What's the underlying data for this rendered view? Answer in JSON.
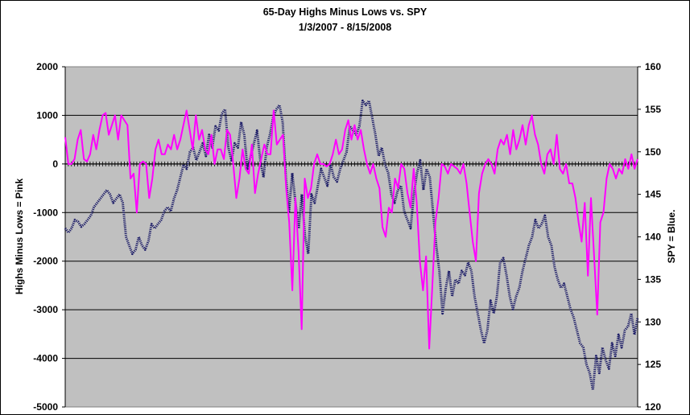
{
  "chart_data": {
    "type": "line",
    "title": "65-Day Highs Minus Lows vs. SPY",
    "subtitle": "1/3/2007 - 8/15/2008",
    "ylabel_left": "Highs Minus Lows = Pink",
    "ylabel_right": "SPY = Blue.",
    "x_range": [
      "1/3/2007",
      "8/15/2008"
    ],
    "y_left": {
      "min": -5000,
      "max": 2000,
      "ticks": [
        "2000",
        "1000",
        "0",
        "-1000",
        "-2000",
        "-3000",
        "-4000",
        "-5000"
      ]
    },
    "y_right": {
      "min": 120,
      "max": 160,
      "ticks": [
        "160",
        "155",
        "150",
        "145",
        "140",
        "135",
        "130",
        "125",
        "120"
      ]
    },
    "grid": true,
    "plot_background": "#c0c0c0",
    "series": [
      {
        "axis": "left",
        "color": "#ff00ff",
        "values": [
          550,
          0,
          0,
          100,
          500,
          700,
          100,
          50,
          200,
          600,
          300,
          700,
          1000,
          1050,
          600,
          800,
          1000,
          500,
          1000,
          900,
          800,
          -300,
          -200,
          -1000,
          0,
          50,
          0,
          -700,
          -300,
          300,
          500,
          200,
          200,
          400,
          300,
          600,
          300,
          500,
          800,
          1100,
          700,
          300,
          1000,
          500,
          700,
          300,
          200,
          600,
          0,
          300,
          300,
          100,
          700,
          600,
          0,
          -700,
          -300,
          300,
          -100,
          -200,
          400,
          -600,
          -200,
          100,
          400,
          200,
          200,
          1100,
          400,
          500,
          600,
          -500,
          -1200,
          -2600,
          -700,
          -1800,
          -3400,
          -300,
          -700,
          -500,
          0,
          200,
          0,
          0,
          -50,
          0,
          200,
          500,
          200,
          300,
          700,
          900,
          500,
          800,
          500,
          700,
          300,
          0,
          -200,
          0,
          -300,
          -500,
          -1300,
          -1500,
          -900,
          -1000,
          -300,
          -500,
          0,
          -100,
          -600,
          -900,
          -100,
          -800,
          -2000,
          -2600,
          -1900,
          -3800,
          -2500,
          -1200,
          -700,
          0,
          -50,
          -200,
          0,
          -50,
          -100,
          -200,
          0,
          -400,
          -1000,
          -1600,
          -2000,
          -600,
          -200,
          0,
          100,
          0,
          -200,
          300,
          500,
          400,
          600,
          200,
          700,
          300,
          500,
          800,
          400,
          800,
          1000,
          600,
          400,
          0,
          -200,
          200,
          300,
          0,
          600,
          -100,
          -200,
          0,
          -400,
          -400,
          -700,
          -1200,
          -1600,
          -800,
          -2300,
          -700,
          -1900,
          -3100,
          -1200,
          -1000,
          -300,
          0,
          -100,
          -300,
          -100,
          -200,
          100,
          -100,
          200,
          -100,
          100
        ]
      },
      {
        "axis": "right",
        "color": "#1a1a66",
        "values": [
          141,
          140.5,
          141,
          142,
          141.8,
          141.2,
          141.5,
          142,
          142.5,
          143.5,
          144,
          144.5,
          145,
          145.5,
          145,
          144,
          144.5,
          145,
          144,
          140,
          139,
          138,
          138.5,
          140,
          139,
          138.5,
          139.5,
          141.5,
          141,
          141.5,
          142,
          143,
          143.5,
          143,
          144.5,
          145.5,
          147,
          148.5,
          148,
          150,
          150.5,
          149,
          150,
          151,
          149.5,
          152,
          150.5,
          153,
          152.5,
          154.5,
          155,
          150.5,
          149,
          151,
          150.5,
          153.5,
          152,
          148,
          149.5,
          151,
          152.5,
          149,
          147,
          150.5,
          152,
          154,
          155,
          155.5,
          153.5,
          147,
          143,
          147.5,
          144,
          141,
          145,
          140,
          138,
          145,
          144,
          146,
          148,
          147,
          146,
          148.5,
          147,
          146.5,
          148,
          149,
          150,
          153,
          152.5,
          152,
          153,
          156,
          155.5,
          156,
          154,
          152,
          149.5,
          150.5,
          148.5,
          147.5,
          145,
          144,
          145.5,
          146,
          143,
          142,
          141,
          145,
          147.5,
          149,
          145.5,
          148,
          147,
          143,
          139,
          136,
          131,
          134,
          136,
          133,
          135,
          134.5,
          136,
          135.5,
          137,
          136,
          133,
          131,
          129,
          127.5,
          129,
          132.5,
          131,
          133,
          137,
          137.5,
          135.5,
          133,
          131.5,
          133,
          134,
          136,
          137.5,
          139,
          140,
          142,
          141,
          141.5,
          142.5,
          140,
          139,
          136.5,
          135,
          134,
          134.5,
          133,
          131.5,
          130.5,
          129,
          127.5,
          127,
          125,
          124,
          122,
          126,
          124,
          127,
          125.5,
          124.5,
          127.5,
          126,
          128.5,
          127,
          129,
          129.5,
          131,
          128.5,
          130.5
        ]
      }
    ]
  }
}
